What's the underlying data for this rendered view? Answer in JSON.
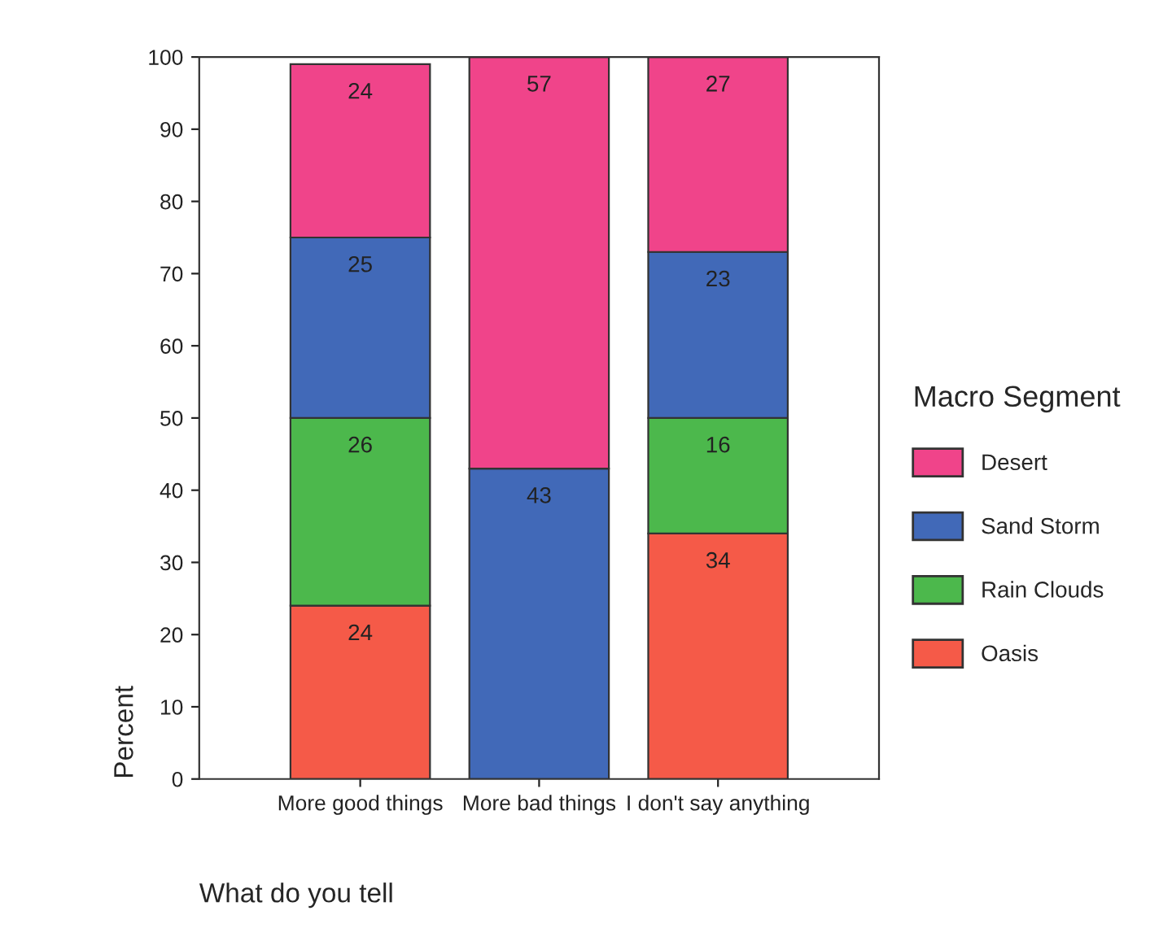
{
  "chart_data": {
    "type": "bar",
    "stacked": true,
    "categories": [
      "More good things",
      "More bad things",
      "I don't say anything"
    ],
    "xlabel": "What do you tell",
    "ylabel": "Percent",
    "legend_title": "Macro Segment",
    "series": [
      {
        "name": "Oasis",
        "color": "#f55a48",
        "values": [
          24,
          0,
          34
        ],
        "value_labels": [
          "24",
          null,
          "34"
        ]
      },
      {
        "name": "Rain Clouds",
        "color": "#4cb84c",
        "values": [
          26,
          0,
          16
        ],
        "value_labels": [
          "26",
          null,
          "16"
        ]
      },
      {
        "name": "Sand Storm",
        "color": "#4169b8",
        "values": [
          25,
          43,
          23
        ],
        "value_labels": [
          "25",
          "43",
          "23"
        ]
      },
      {
        "name": "Desert",
        "color": "#f0448a",
        "values": [
          24,
          57,
          27
        ],
        "value_labels": [
          "24",
          "57",
          "27"
        ]
      }
    ],
    "ylim": [
      0,
      100
    ],
    "yticks": [
      0,
      10,
      20,
      30,
      40,
      50,
      60,
      70,
      80,
      90,
      100
    ],
    "grid": false,
    "legend": "right"
  }
}
